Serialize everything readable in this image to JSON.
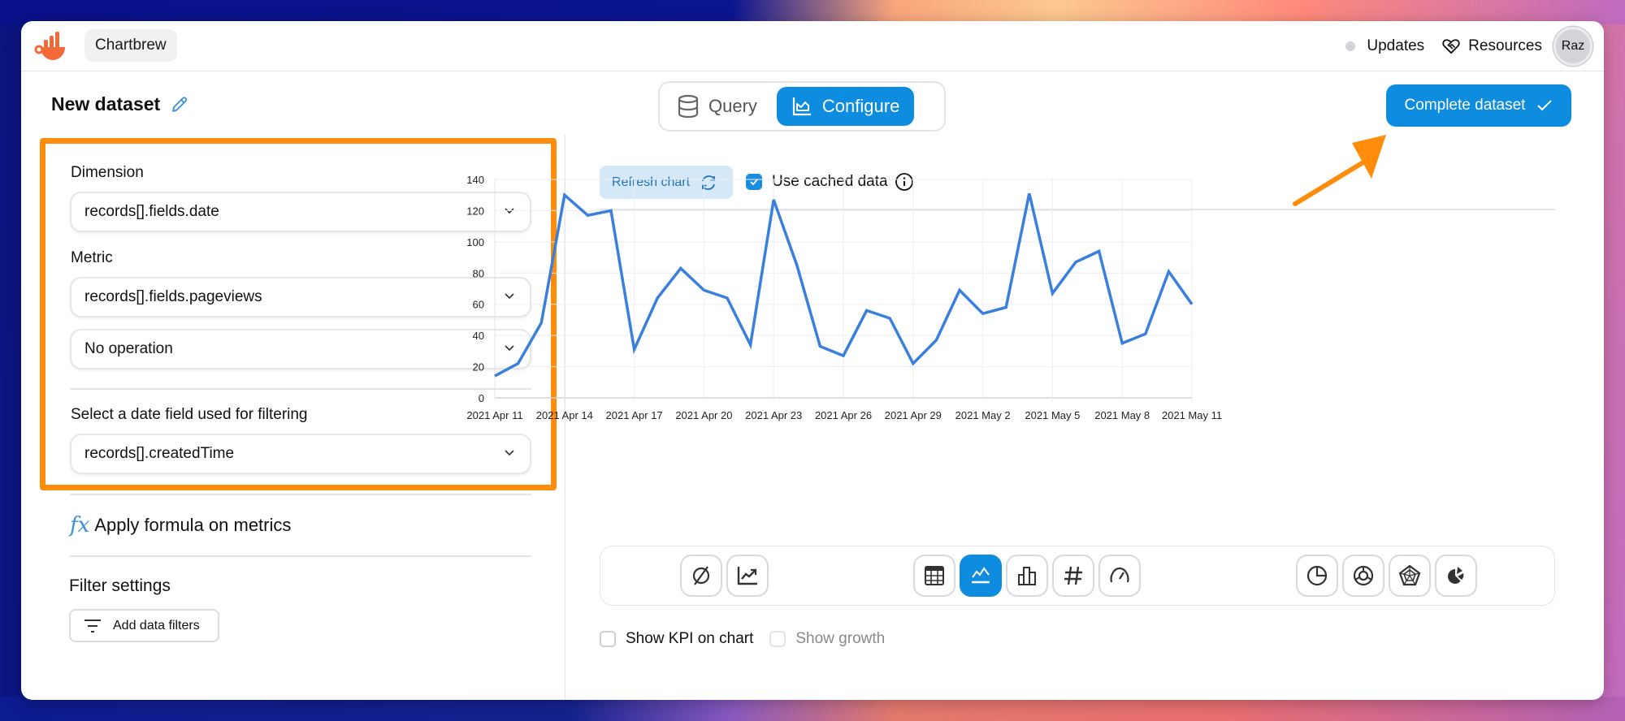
{
  "app": {
    "brand": "Chartbrew",
    "updates_label": "Updates",
    "resources_label": "Resources",
    "avatar_initials": "Raz",
    "colors": {
      "accent": "#0d8ce0",
      "highlight": "#ff8c0a",
      "logo": "#f06a3a",
      "line": "#3b7fdc"
    }
  },
  "page": {
    "title": "New dataset",
    "tabs": [
      {
        "label": "Query",
        "active": false
      },
      {
        "label": "Configure",
        "active": true
      }
    ],
    "complete_button": "Complete dataset"
  },
  "left_panel": {
    "dimension_label": "Dimension",
    "dimension_value": "records[].fields.date",
    "metric_label": "Metric",
    "metric_value": "records[].fields.pageviews",
    "operation_value": "No operation",
    "date_filter_label": "Select a date field used for filtering",
    "date_filter_value": "records[].createdTime",
    "formula_icon": "fx",
    "formula_label": "Apply formula on metrics",
    "filter_title": "Filter settings",
    "add_filter_label": "Add data filters"
  },
  "chart_panel": {
    "refresh_label": "Refresh chart",
    "cached_label": "Use cached data",
    "cached_checked": true,
    "chart_types_left": [
      "clear-icon",
      "trend-icon"
    ],
    "chart_types_mid": [
      "table-icon",
      "line-chart-icon",
      "bar-chart-icon",
      "kpi-hash-icon",
      "gauge-icon"
    ],
    "chart_types_right": [
      "pie-icon",
      "doughnut-icon",
      "radar-icon",
      "polar-icon"
    ],
    "active_type": "line-chart-icon",
    "show_kpi_label": "Show KPI on chart",
    "show_kpi_checked": false,
    "show_growth_label": "Show growth",
    "show_growth_checked": false
  },
  "chart_data": {
    "type": "line",
    "title": "",
    "xlabel": "",
    "ylabel": "",
    "ylim": [
      0,
      140
    ],
    "yticks": [
      0,
      20,
      40,
      60,
      80,
      100,
      120,
      140
    ],
    "xtick_labels": [
      "2021 Apr 11",
      "2021 Apr 14",
      "2021 Apr 17",
      "2021 Apr 20",
      "2021 Apr 23",
      "2021 Apr 26",
      "2021 Apr 29",
      "2021 May 2",
      "2021 May 5",
      "2021 May 8",
      "2021 May 11"
    ],
    "grid": true,
    "legend": "none",
    "x": [
      "Apr 11",
      "Apr 12",
      "Apr 13",
      "Apr 14",
      "Apr 15",
      "Apr 16",
      "Apr 17",
      "Apr 18",
      "Apr 19",
      "Apr 20",
      "Apr 21",
      "Apr 22",
      "Apr 23",
      "Apr 24",
      "Apr 25",
      "Apr 26",
      "Apr 27",
      "Apr 28",
      "Apr 29",
      "Apr 30",
      "May 1",
      "May 2",
      "May 3",
      "May 4",
      "May 5",
      "May 6",
      "May 7",
      "May 8",
      "May 9",
      "May 10",
      "May 11"
    ],
    "series": [
      {
        "name": "records[].fields.pageviews",
        "values": [
          14,
          22,
          48,
          130,
          117,
          120,
          31,
          64,
          83,
          69,
          64,
          34,
          127,
          85,
          33,
          27,
          56,
          51,
          22,
          37,
          69,
          54,
          58,
          131,
          67,
          87,
          94,
          35,
          41,
          81,
          60
        ]
      }
    ]
  }
}
